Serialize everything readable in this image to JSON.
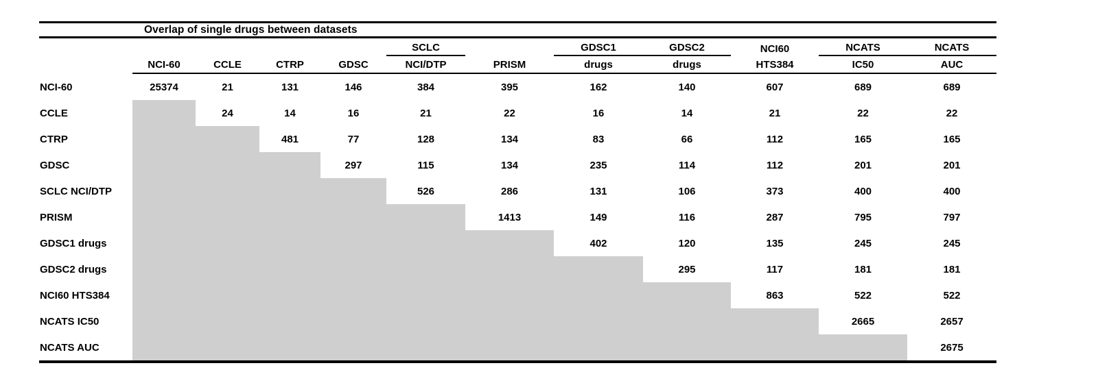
{
  "table": {
    "title": "Overlap of single drugs between datasets",
    "columns": [
      {
        "group": "",
        "label": "NCI-60",
        "group_underline": false
      },
      {
        "group": "",
        "label": "CCLE",
        "group_underline": false
      },
      {
        "group": "",
        "label": "CTRP",
        "group_underline": false
      },
      {
        "group": "",
        "label": "GDSC",
        "group_underline": false
      },
      {
        "group": "SCLC",
        "label": "NCI/DTP",
        "group_underline": true
      },
      {
        "group": "",
        "label": "PRISM",
        "group_underline": false
      },
      {
        "group": "GDSC1",
        "label": "drugs",
        "group_underline": true
      },
      {
        "group": "GDSC2",
        "label": "drugs",
        "group_underline": true
      },
      {
        "group": "NCI60",
        "label": "HTS384",
        "group_underline": false
      },
      {
        "group": "NCATS",
        "label": "IC50",
        "group_underline": true
      },
      {
        "group": "NCATS",
        "label": "AUC",
        "group_underline": true
      }
    ],
    "rows": [
      {
        "label": "NCI-60",
        "values": [
          "25374",
          "21",
          "131",
          "146",
          "384",
          "395",
          "162",
          "140",
          "607",
          "689",
          "689"
        ]
      },
      {
        "label": "CCLE",
        "values": [
          null,
          "24",
          "14",
          "16",
          "21",
          "22",
          "16",
          "14",
          "21",
          "22",
          "22"
        ]
      },
      {
        "label": "CTRP",
        "values": [
          null,
          null,
          "481",
          "77",
          "128",
          "134",
          "83",
          "66",
          "112",
          "165",
          "165"
        ]
      },
      {
        "label": "GDSC",
        "values": [
          null,
          null,
          null,
          "297",
          "115",
          "134",
          "235",
          "114",
          "112",
          "201",
          "201"
        ]
      },
      {
        "label": "SCLC NCI/DTP",
        "values": [
          null,
          null,
          null,
          null,
          "526",
          "286",
          "131",
          "106",
          "373",
          "400",
          "400"
        ]
      },
      {
        "label": "PRISM",
        "values": [
          null,
          null,
          null,
          null,
          null,
          "1413",
          "149",
          "116",
          "287",
          "795",
          "797"
        ]
      },
      {
        "label": "GDSC1 drugs",
        "values": [
          null,
          null,
          null,
          null,
          null,
          null,
          "402",
          "120",
          "135",
          "245",
          "245"
        ]
      },
      {
        "label": "GDSC2 drugs",
        "values": [
          null,
          null,
          null,
          null,
          null,
          null,
          null,
          "295",
          "117",
          "181",
          "181"
        ]
      },
      {
        "label": "NCI60 HTS384",
        "values": [
          null,
          null,
          null,
          null,
          null,
          null,
          null,
          null,
          "863",
          "522",
          "522"
        ]
      },
      {
        "label": "NCATS IC50",
        "values": [
          null,
          null,
          null,
          null,
          null,
          null,
          null,
          null,
          null,
          "2665",
          "2657"
        ]
      },
      {
        "label": "NCATS AUC",
        "values": [
          null,
          null,
          null,
          null,
          null,
          null,
          null,
          null,
          null,
          null,
          "2675"
        ]
      }
    ]
  },
  "colors": {
    "triangle_fill": "#cfcfcf",
    "rule": "#000000",
    "text": "#000000"
  }
}
